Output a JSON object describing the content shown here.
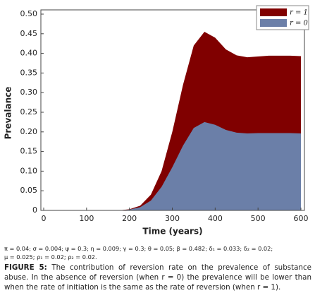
{
  "chart_data": {
    "type": "area",
    "x_label": "Time (years)",
    "y_label": "Prevalance",
    "x": [
      0,
      25,
      50,
      75,
      100,
      125,
      150,
      175,
      200,
      225,
      250,
      275,
      300,
      325,
      350,
      375,
      400,
      425,
      450,
      475,
      500,
      525,
      550,
      575,
      600
    ],
    "series": [
      {
        "name": "r = 1",
        "color": "#800000",
        "values": [
          0,
          0,
          0,
          0,
          0,
          0,
          0,
          0,
          0.003,
          0.012,
          0.04,
          0.1,
          0.2,
          0.32,
          0.42,
          0.455,
          0.44,
          0.41,
          0.395,
          0.39,
          0.392,
          0.394,
          0.394,
          0.394,
          0.393
        ]
      },
      {
        "name": "r = 0",
        "color": "#6b7fa8",
        "values": [
          0,
          0,
          0,
          0,
          0,
          0,
          0,
          0,
          0.002,
          0.008,
          0.025,
          0.06,
          0.11,
          0.165,
          0.21,
          0.225,
          0.218,
          0.205,
          0.198,
          0.196,
          0.197,
          0.197,
          0.197,
          0.197,
          0.196
        ]
      }
    ],
    "xlim": [
      0,
      600
    ],
    "xticks": [
      0,
      100,
      200,
      300,
      400,
      500,
      600
    ],
    "ylim": [
      0,
      0.5
    ],
    "yticks": [
      0,
      {
        "value": 0.05,
        "label": "0.05"
      },
      {
        "value": 0.1,
        "label": "0.10"
      },
      {
        "value": 0.15,
        "label": "0.15"
      },
      {
        "value": 0.2,
        "label": "0.20"
      },
      {
        "value": 0.25,
        "label": "0.25"
      },
      {
        "value": 0.3,
        "label": "0.30"
      },
      {
        "value": 0.35,
        "label": "0.35"
      },
      {
        "value": 0.4,
        "label": "0.40"
      },
      {
        "value": 0.45,
        "label": "0.45"
      },
      {
        "value": 0.5,
        "label": "0.50"
      }
    ],
    "legend": "top-right"
  },
  "notes": [
    "π = 0.04; σ = 0.004; ψ = 0.3; η = 0.009; γ = 0.3; θ = 0.05; β = 0.482; δ₁ = 0.033; δ₂ = 0.02;",
    "μ = 0.025; ρ₁ = 0.02; ρ₂ = 0.02."
  ],
  "caption_label": "FIGURE 5:",
  "caption": "The contribution of reversion rate on the prevalence of substance abuse. In the absence of reversion (when r = 0) the prevalence will be lower than when the rate of initiation is the same as the rate of reversion (when r = 1)."
}
